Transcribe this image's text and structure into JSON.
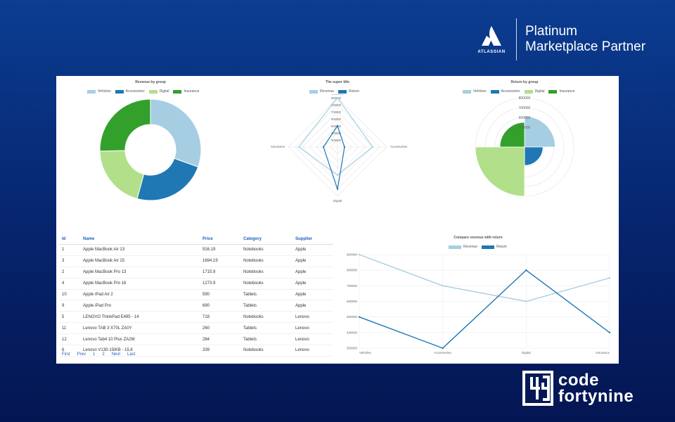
{
  "partner": {
    "logo_word": "ATLASSIAN",
    "line1": "Platinum",
    "line2": "Marketplace Partner"
  },
  "brand": {
    "line1": "code",
    "line2": "fortynine"
  },
  "colors": {
    "vehicles": "#a6cee3",
    "accessories": "#1f78b4",
    "digital": "#b2df8a",
    "insurance": "#33a02c",
    "revenue": "#a6cee3",
    "return": "#1f78b4"
  },
  "chart_data": [
    {
      "type": "pie",
      "title": "Revenue by group",
      "legend": [
        "Vehicles",
        "Accessories",
        "Digital",
        "Insurance"
      ],
      "values": [
        900000,
        700000,
        600000,
        750000
      ]
    },
    {
      "type": "radar",
      "title": "The super title",
      "axes": [
        "Vehicles",
        "Accessories",
        "Digital",
        "Insurance"
      ],
      "ticks": [
        "300000",
        "400000",
        "500000",
        "600000",
        "700000",
        "800000",
        "900000"
      ],
      "series": [
        {
          "name": "Revenue",
          "values": [
            900000,
            700000,
            600000,
            750000
          ]
        },
        {
          "name": "Return",
          "values": [
            500000,
            300000,
            800000,
            400000
          ]
        }
      ]
    },
    {
      "type": "polar",
      "title": "Return by group",
      "legend": [
        "Vehicles",
        "Accessories",
        "Digital",
        "Insurance"
      ],
      "ticks": [
        "500000",
        "600000",
        "700000",
        "800000"
      ],
      "values": [
        500000,
        300000,
        800000,
        400000
      ]
    },
    {
      "type": "line",
      "title": "Compare revenue with return",
      "categories": [
        "Vehicles",
        "Accessories",
        "Digital",
        "Insurance"
      ],
      "ylim": [
        300000,
        900000
      ],
      "yticks": [
        "900000",
        "800000",
        "700000",
        "600000",
        "500000",
        "400000",
        "300000"
      ],
      "series": [
        {
          "name": "Revenue",
          "values": [
            900000,
            700000,
            600000,
            750000
          ]
        },
        {
          "name": "Return",
          "values": [
            500000,
            300000,
            800000,
            400000
          ]
        }
      ]
    }
  ],
  "table": {
    "headers": [
      "Id",
      "Name",
      "Price",
      "Category",
      "Supplier"
    ],
    "rows": [
      [
        "1",
        "Apple MacBook Air 13",
        "916.19",
        "Notebooks",
        "Apple"
      ],
      [
        "3",
        "Apple MacBook Air 15",
        "1694.19",
        "Notebooks",
        "Apple"
      ],
      [
        "2",
        "Apple MacBook Pro 13",
        "1715.9",
        "Notebooks",
        "Apple"
      ],
      [
        "4",
        "Apple MacBook Pro 16",
        "1273.9",
        "Notebooks",
        "Apple"
      ],
      [
        "10",
        "Apple iPad Air 2",
        "590",
        "Tablets",
        "Apple"
      ],
      [
        "9",
        "Apple iPad Pro",
        "690",
        "Tablets",
        "Apple"
      ],
      [
        "5",
        "LENOVO ThinkPad E495 - 14",
        "718",
        "Notebooks",
        "Lenovo"
      ],
      [
        "11",
        "Lenovo TAB 3 X70L ZA0Y",
        "260",
        "Tablets",
        "Lenovo"
      ],
      [
        "12",
        "Lenovo Tab4 10 Plus ZA2M",
        "284",
        "Tablets",
        "Lenovo"
      ],
      [
        "6",
        "Lenovo V130-15IKB - 15,6",
        "339",
        "Notebooks",
        "Lenovo"
      ]
    ],
    "pager": [
      "First",
      "Prev",
      "1",
      "2",
      "Next",
      "Last"
    ]
  }
}
